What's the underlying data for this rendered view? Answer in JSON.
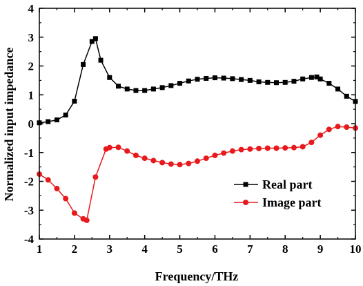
{
  "chart_data": {
    "type": "line",
    "xlabel": "Frequency/THz",
    "ylabel": "Normalized input impedance",
    "xlim": [
      1,
      10
    ],
    "ylim": [
      -4,
      4
    ],
    "xticks": [
      1,
      2,
      3,
      4,
      5,
      6,
      7,
      8,
      9,
      10
    ],
    "yticks": [
      -4,
      -3,
      -2,
      -1,
      0,
      1,
      2,
      3,
      4
    ],
    "grid": false,
    "legend": "lower-right",
    "series": [
      {
        "name": "Real part",
        "color": "#000000",
        "marker": "square",
        "x": [
          1.0,
          1.25,
          1.5,
          1.75,
          2.0,
          2.25,
          2.5,
          2.6,
          2.75,
          3.0,
          3.25,
          3.5,
          3.75,
          4.0,
          4.25,
          4.5,
          4.75,
          5.0,
          5.25,
          5.5,
          5.75,
          6.0,
          6.25,
          6.5,
          6.75,
          7.0,
          7.25,
          7.5,
          7.75,
          8.0,
          8.25,
          8.5,
          8.75,
          8.9,
          9.0,
          9.25,
          9.5,
          9.75,
          10.0
        ],
        "y": [
          0.03,
          0.07,
          0.13,
          0.3,
          0.78,
          2.05,
          2.85,
          2.95,
          2.2,
          1.6,
          1.3,
          1.2,
          1.15,
          1.15,
          1.2,
          1.25,
          1.32,
          1.4,
          1.48,
          1.54,
          1.57,
          1.59,
          1.58,
          1.56,
          1.53,
          1.5,
          1.45,
          1.43,
          1.42,
          1.43,
          1.47,
          1.55,
          1.6,
          1.62,
          1.55,
          1.4,
          1.2,
          0.95,
          0.77
        ]
      },
      {
        "name": "Image part",
        "color": "#e8191c",
        "marker": "circle",
        "x": [
          1.0,
          1.25,
          1.5,
          1.75,
          2.0,
          2.25,
          2.35,
          2.6,
          2.9,
          3.0,
          3.25,
          3.5,
          3.75,
          4.0,
          4.25,
          4.5,
          4.75,
          5.0,
          5.25,
          5.5,
          5.75,
          6.0,
          6.25,
          6.5,
          6.75,
          7.0,
          7.25,
          7.5,
          7.75,
          8.0,
          8.25,
          8.5,
          8.75,
          9.0,
          9.25,
          9.5,
          9.75,
          10.0
        ],
        "y": [
          -1.75,
          -1.95,
          -2.25,
          -2.6,
          -3.1,
          -3.3,
          -3.35,
          -1.85,
          -0.88,
          -0.83,
          -0.82,
          -0.95,
          -1.1,
          -1.2,
          -1.28,
          -1.35,
          -1.4,
          -1.42,
          -1.38,
          -1.3,
          -1.2,
          -1.1,
          -1.02,
          -0.95,
          -0.9,
          -0.88,
          -0.86,
          -0.85,
          -0.85,
          -0.84,
          -0.83,
          -0.8,
          -0.65,
          -0.4,
          -0.2,
          -0.1,
          -0.12,
          -0.15
        ]
      }
    ]
  }
}
